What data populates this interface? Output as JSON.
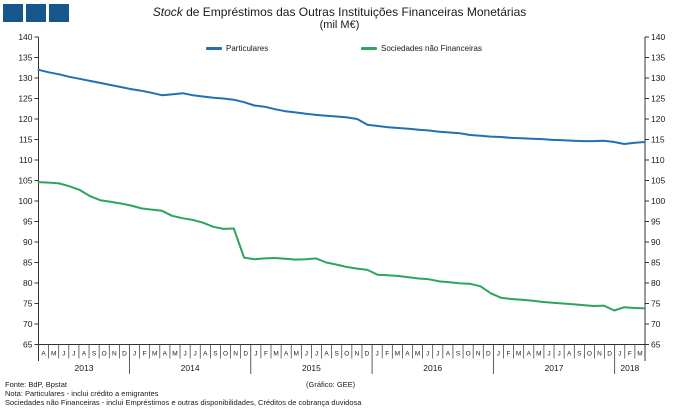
{
  "logo": {
    "square_color": "#16568C",
    "square_count": 3
  },
  "title": {
    "italic": "Stock",
    "rest": " de Empréstimos das Outras Instituições Financeiras Monetárias",
    "subtitle": "(mil M€)"
  },
  "legend": [
    {
      "label": "Particulares",
      "color": "#2170B4"
    },
    {
      "label": "Sociedades não Financeiras",
      "color": "#2EA55C"
    }
  ],
  "footer": {
    "fonte": "Fonte: BdP, Bpstat",
    "grafico": "(Gráfico: GEE)",
    "nota1": "Nota: Particulares - inclui crédito a emigrantes",
    "nota2": "Sociedades não Financeiras - inclui Empréstimos e outras disponibilidades, Créditos de cobrança duvidosa"
  },
  "chart_data": {
    "type": "line",
    "title": "Stock de Empréstimos das Outras Instituições Financeiras Monetárias",
    "subtitle": "(mil M€)",
    "ylabel": "",
    "xlabel": "",
    "ylim": [
      65,
      140
    ],
    "ytick_step": 5,
    "grid": false,
    "legend_position": "top-inside",
    "categories": [
      "A",
      "M",
      "J",
      "J",
      "A",
      "S",
      "O",
      "N",
      "D",
      "J",
      "F",
      "M",
      "A",
      "M",
      "J",
      "J",
      "A",
      "S",
      "O",
      "N",
      "D",
      "J",
      "F",
      "M",
      "A",
      "M",
      "J",
      "J",
      "A",
      "S",
      "O",
      "N",
      "D",
      "J",
      "F",
      "M",
      "A",
      "M",
      "J",
      "J",
      "A",
      "S",
      "O",
      "N",
      "D",
      "J",
      "F",
      "M",
      "A",
      "M",
      "J",
      "J",
      "A",
      "S",
      "O",
      "N",
      "D",
      "J",
      "F",
      "M"
    ],
    "year_groups": [
      {
        "year": "2013",
        "months": 9
      },
      {
        "year": "2014",
        "months": 12
      },
      {
        "year": "2015",
        "months": 12
      },
      {
        "year": "2016",
        "months": 12
      },
      {
        "year": "2017",
        "months": 12
      },
      {
        "year": "2018",
        "months": 3
      }
    ],
    "series": [
      {
        "name": "Particulares",
        "color": "#2170B4",
        "values": [
          132.0,
          131.4,
          130.9,
          130.3,
          129.8,
          129.3,
          128.8,
          128.3,
          127.8,
          127.3,
          126.9,
          126.4,
          125.8,
          126.0,
          126.3,
          125.8,
          125.5,
          125.2,
          125.0,
          124.7,
          124.1,
          123.3,
          123.0,
          122.4,
          121.9,
          121.6,
          121.3,
          121.0,
          120.8,
          120.6,
          120.4,
          120.0,
          118.6,
          118.3,
          118.0,
          117.8,
          117.6,
          117.4,
          117.2,
          116.9,
          116.7,
          116.5,
          116.1,
          115.9,
          115.7,
          115.6,
          115.4,
          115.3,
          115.2,
          115.1,
          114.9,
          114.8,
          114.7,
          114.6,
          114.6,
          114.7,
          114.4,
          113.9,
          114.2,
          114.4
        ]
      },
      {
        "name": "Sociedades não Financeiras",
        "color": "#2EA55C",
        "values": [
          104.6,
          104.5,
          104.3,
          103.6,
          102.7,
          101.2,
          100.2,
          99.8,
          99.4,
          98.9,
          98.2,
          97.9,
          97.6,
          96.4,
          95.8,
          95.4,
          94.7,
          93.7,
          93.2,
          93.3,
          86.2,
          85.8,
          86.0,
          86.1,
          85.9,
          85.7,
          85.8,
          86.0,
          85.0,
          84.5,
          83.9,
          83.5,
          83.2,
          82.0,
          81.9,
          81.7,
          81.4,
          81.1,
          80.9,
          80.4,
          80.2,
          79.9,
          79.8,
          79.2,
          77.5,
          76.4,
          76.1,
          75.9,
          75.7,
          75.4,
          75.2,
          75.0,
          74.8,
          74.6,
          74.4,
          74.5,
          73.3,
          74.1,
          73.9,
          73.8
        ]
      }
    ]
  }
}
